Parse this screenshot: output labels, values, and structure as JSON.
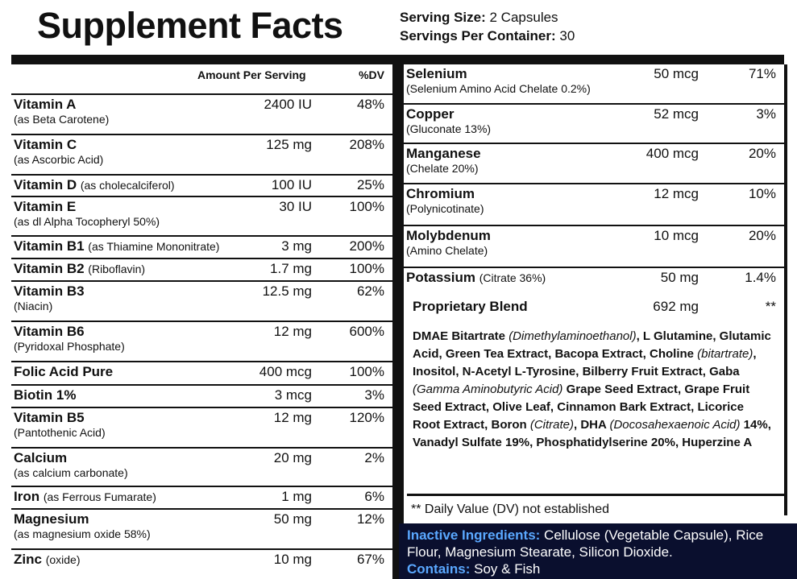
{
  "header": {
    "title": "Supplement Facts",
    "serving_size_label": "Serving Size:",
    "serving_size_value": "2 Capsules",
    "servings_per_container_label": "Servings Per Container:",
    "servings_per_container_value": "30"
  },
  "columns": {
    "amount": "Amount Per Serving",
    "dv": "%DV"
  },
  "left_rows": [
    {
      "name": "Vitamin A",
      "inline": "",
      "sub": "(as Beta Carotene)",
      "amount": "2400 IU",
      "dv": "48%"
    },
    {
      "name": "Vitamin C",
      "inline": "",
      "sub": "(as Ascorbic Acid)",
      "amount": "125 mg",
      "dv": "208%"
    },
    {
      "name": "Vitamin D",
      "inline": "(as cholecalciferol)",
      "sub": "",
      "amount": "100 IU",
      "dv": "25%"
    },
    {
      "name": "Vitamin E",
      "inline": "",
      "sub": "(as dl Alpha Tocopheryl 50%)",
      "amount": "30 IU",
      "dv": "100%"
    },
    {
      "name": "Vitamin B1",
      "inline": "(as Thiamine Mononitrate)",
      "sub": "",
      "amount": "3 mg",
      "dv": "200%"
    },
    {
      "name": "Vitamin B2",
      "inline": "(Riboflavin)",
      "sub": "",
      "amount": "1.7 mg",
      "dv": "100%"
    },
    {
      "name": "Vitamin B3",
      "inline": "",
      "sub": "(Niacin)",
      "amount": "12.5 mg",
      "dv": "62%"
    },
    {
      "name": "Vitamin B6",
      "inline": "",
      "sub": "(Pyridoxal Phosphate)",
      "amount": "12 mg",
      "dv": "600%"
    },
    {
      "name": "Folic Acid Pure",
      "inline": "",
      "sub": "",
      "amount": "400 mcg",
      "dv": "100%"
    },
    {
      "name": "Biotin 1%",
      "inline": "",
      "sub": "",
      "amount": "3 mcg",
      "dv": "3%"
    },
    {
      "name": "Vitamin B5",
      "inline": "",
      "sub": "(Pantothenic Acid)",
      "amount": "12 mg",
      "dv": "120%"
    },
    {
      "name": "Calcium",
      "inline": "",
      "sub": "(as calcium carbonate)",
      "amount": "20 mg",
      "dv": "2%"
    },
    {
      "name": "Iron",
      "inline": "(as Ferrous Fumarate)",
      "sub": "",
      "amount": "1 mg",
      "dv": "6%"
    },
    {
      "name": "Magnesium",
      "inline": "",
      "sub": "(as magnesium oxide 58%)",
      "amount": "50 mg",
      "dv": "12%"
    },
    {
      "name": "Zinc",
      "inline": "(oxide)",
      "sub": "",
      "amount": "10 mg",
      "dv": "67%"
    }
  ],
  "right_rows": [
    {
      "name": "Selenium",
      "inline": "",
      "sub": "(Selenium Amino Acid Chelate 0.2%)",
      "amount": "50 mcg",
      "dv": "71%"
    },
    {
      "name": "Copper",
      "inline": "",
      "sub": "(Gluconate 13%)",
      "amount": "52 mcg",
      "dv": "3%"
    },
    {
      "name": "Manganese",
      "inline": "",
      "sub": "(Chelate 20%)",
      "amount": "400 mcg",
      "dv": "20%"
    },
    {
      "name": "Chromium",
      "inline": "",
      "sub": "(Polynicotinate)",
      "amount": "12 mcg",
      "dv": "10%"
    },
    {
      "name": "Molybdenum",
      "inline": "",
      "sub": "(Amino Chelate)",
      "amount": "10 mcg",
      "dv": "20%"
    },
    {
      "name": "Potassium",
      "inline": "(Citrate 36%)",
      "sub": "",
      "amount": "50 mg",
      "dv": "1.4%"
    }
  ],
  "blend": {
    "name": "Proprietary Blend",
    "amount": "692 mg",
    "dv": "**",
    "segments": [
      {
        "t": "DMAE Bitartrate ",
        "i": false
      },
      {
        "t": "(Dimethylaminoethanol)",
        "i": true
      },
      {
        "t": ", L Glutamine, Glutamic Acid, Green Tea Extract, Bacopa Extract, Choline ",
        "i": false
      },
      {
        "t": "(bitartrate)",
        "i": true
      },
      {
        "t": ", Inositol, N-Acetyl L-Tyrosine, Bilberry Fruit Extract, Gaba ",
        "i": false
      },
      {
        "t": "(Gamma Aminobutyric Acid)",
        "i": true
      },
      {
        "t": " Grape Seed Extract, Grape Fruit Seed Extract, Olive Leaf, Cinnamon Bark Extract, Licorice Root Extract, Boron ",
        "i": false
      },
      {
        "t": "(Citrate)",
        "i": true
      },
      {
        "t": ", DHA ",
        "i": false
      },
      {
        "t": "(Docosahexaenoic Acid)",
        "i": true
      },
      {
        "t": " 14%, Vanadyl Sulfate 19%, Phosphatidylserine 20%, Huperzine A",
        "i": false
      }
    ]
  },
  "dv_note": "** Daily Value (DV) not established",
  "inactive": {
    "label": "Inactive Ingredients:",
    "text": " Cellulose (Vegetable Capsule), Rice Flour, Magnesium Stearate, Silicon Dioxide.",
    "contains_label": "Contains:",
    "contains_text": " Soy & Fish"
  },
  "colors": {
    "ink": "#111111",
    "footer_bg": "#0a0f2e",
    "footer_label": "#5aa8ff"
  }
}
